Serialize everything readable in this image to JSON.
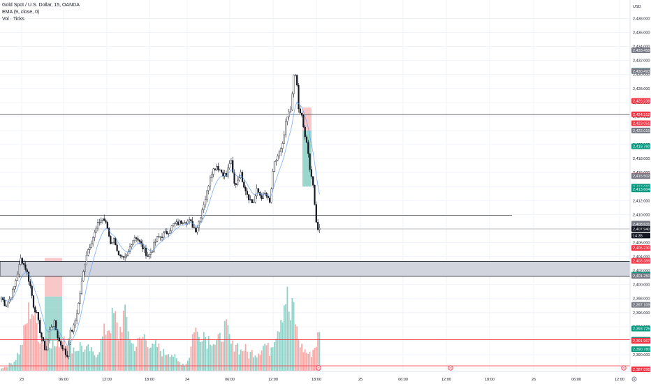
{
  "legend": {
    "symbol": "Gold Spot / U.S. Dollar, 15, OANDA",
    "ema": "EMA (9, close, 0)",
    "vol": "Vol · Ticks"
  },
  "currency": "USD",
  "chart_data": {
    "type": "candlestick",
    "title": "",
    "y_ticks": [
      "2,438.000",
      "2,436.000",
      "2,434.000",
      "2,432.000",
      "2,430.000",
      "2,428.000",
      "2,426.000",
      "2,424.000",
      "2,422.000",
      "2,420.000",
      "2,418.000",
      "2,416.000",
      "2,414.000",
      "2,412.000",
      "2,410.000",
      "2,408.000",
      "2,406.000",
      "2,404.000",
      "2,402.000",
      "2,400.000",
      "2,398.000",
      "2,396.000",
      "2,394.000",
      "2,392.000",
      "2,390.000",
      "2,388.000"
    ],
    "ylim": [
      2387.0,
      2439.5
    ],
    "x_ticks": [
      "23",
      "06:00",
      "12:00",
      "18:00",
      "24",
      "06:00",
      "12:00",
      "18:00",
      "25",
      "06:00",
      "12:00",
      "18:00",
      "26",
      "06:00",
      "12:00"
    ],
    "price_tags": [
      {
        "label": "2,433.458",
        "value": 2433.458,
        "color": "#787b86"
      },
      {
        "label": "2,430.530",
        "value": 2430.53,
        "color": "#089981"
      },
      {
        "label": "2,430.493",
        "value": 2430.493,
        "color": "#787b86"
      },
      {
        "label": "2,426.238",
        "value": 2426.238,
        "color": "#f23645"
      },
      {
        "label": "2,424.312",
        "value": 2424.312,
        "color": "#f23645"
      },
      {
        "label": "2,423.051",
        "value": 2423.051,
        "color": "#f23645"
      },
      {
        "label": "2,422.015",
        "value": 2422.015,
        "color": "#787b86"
      },
      {
        "label": "2,419.760",
        "value": 2419.76,
        "color": "#089981"
      },
      {
        "label": "2,415.547",
        "value": 2415.547,
        "color": "#f23645"
      },
      {
        "label": "2,415.504",
        "value": 2415.504,
        "color": "#f23645"
      },
      {
        "label": "2,415.502",
        "value": 2415.502,
        "color": "#787b86"
      },
      {
        "label": "2,413.982",
        "value": 2413.982,
        "color": "#089981"
      },
      {
        "label": "2,413.604",
        "value": 2413.604,
        "color": "#089981"
      },
      {
        "label": "2,408.718",
        "value": 2408.718,
        "color": "#787b86"
      },
      {
        "label": "2,408.631",
        "value": 2408.631,
        "color": "#787b86"
      },
      {
        "label": "2,407.940",
        "value": 2407.94,
        "color": "#131722"
      },
      {
        "label": "14:35",
        "value": 2407.0,
        "color": "#131722"
      },
      {
        "label": "2,405.230",
        "value": 2405.23,
        "color": "#f23645"
      },
      {
        "label": "2,403.389",
        "value": 2403.389,
        "color": "#f23645"
      },
      {
        "label": "2,401.409",
        "value": 2401.409,
        "color": "#089981"
      },
      {
        "label": "2,401.292",
        "value": 2401.292,
        "color": "#089981"
      },
      {
        "label": "2,401.250",
        "value": 2401.25,
        "color": "#787b86"
      },
      {
        "label": "2,397.109",
        "value": 2397.109,
        "color": "#787b86"
      },
      {
        "label": "2,393.725",
        "value": 2393.725,
        "color": "#089981"
      },
      {
        "label": "2,392.127",
        "value": 2392.127,
        "color": "#089981"
      },
      {
        "label": "2,392.011",
        "value": 2392.011,
        "color": "#089981"
      },
      {
        "label": "2,392.004",
        "value": 2392.004,
        "color": "#f23645"
      },
      {
        "label": "2,391.967",
        "value": 2391.967,
        "color": "#f23645"
      },
      {
        "label": "2,390.780",
        "value": 2390.78,
        "color": "#089981"
      },
      {
        "label": "2,387.898",
        "value": 2387.898,
        "color": "#f23645"
      }
    ],
    "horizontal_lines": [
      {
        "value": 2424.312,
        "color": "#555555"
      },
      {
        "value": 2409.9,
        "color": "#555555"
      },
      {
        "value": 2407.94,
        "color": "#b0b0b0"
      },
      {
        "value": 2392.13,
        "color": "#f23645"
      },
      {
        "value": 2388.4,
        "color": "#f23645"
      }
    ],
    "zone": {
      "low": 2401.2,
      "high": 2403.3
    },
    "series_pivots": [
      [
        0,
        2398.6
      ],
      [
        8,
        2397.0
      ],
      [
        14,
        2398.0
      ],
      [
        20,
        2399.5
      ],
      [
        30,
        2403.8
      ],
      [
        38,
        2402.0
      ],
      [
        44,
        2399.5
      ],
      [
        48,
        2397.0
      ],
      [
        52,
        2396.0
      ],
      [
        57,
        2393.5
      ],
      [
        62,
        2391.5
      ],
      [
        66,
        2390.5
      ],
      [
        72,
        2394.0
      ],
      [
        78,
        2394.5
      ],
      [
        84,
        2392.0
      ],
      [
        90,
        2391.0
      ],
      [
        96,
        2389.6
      ],
      [
        100,
        2393.0
      ],
      [
        106,
        2394.0
      ],
      [
        112,
        2397.0
      ],
      [
        118,
        2401.0
      ],
      [
        124,
        2404.5
      ],
      [
        130,
        2406.0
      ],
      [
        136,
        2407.5
      ],
      [
        142,
        2409.0
      ],
      [
        148,
        2409.5
      ],
      [
        154,
        2408.0
      ],
      [
        158,
        2406.0
      ],
      [
        164,
        2406.5
      ],
      [
        170,
        2404.0
      ],
      [
        176,
        2403.5
      ],
      [
        182,
        2404.0
      ],
      [
        188,
        2406.0
      ],
      [
        194,
        2407.0
      ],
      [
        200,
        2406.0
      ],
      [
        206,
        2405.0
      ],
      [
        212,
        2404.0
      ],
      [
        218,
        2405.0
      ],
      [
        224,
        2406.5
      ],
      [
        232,
        2407.0
      ],
      [
        240,
        2407.5
      ],
      [
        248,
        2408.5
      ],
      [
        256,
        2408.8
      ],
      [
        264,
        2409.2
      ],
      [
        272,
        2409.0
      ],
      [
        280,
        2407.8
      ],
      [
        284,
        2408.6
      ],
      [
        290,
        2411.0
      ],
      [
        296,
        2413.0
      ],
      [
        302,
        2416.0
      ],
      [
        310,
        2417.0
      ],
      [
        318,
        2416.0
      ],
      [
        324,
        2415.5
      ],
      [
        330,
        2418.0
      ],
      [
        336,
        2414.0
      ],
      [
        344,
        2416.0
      ],
      [
        350,
        2414.0
      ],
      [
        356,
        2412.5
      ],
      [
        362,
        2411.5
      ],
      [
        368,
        2413.5
      ],
      [
        374,
        2412.5
      ],
      [
        380,
        2413.0
      ],
      [
        386,
        2411.5
      ],
      [
        392,
        2417.0
      ],
      [
        398,
        2418.5
      ],
      [
        404,
        2419.5
      ],
      [
        410,
        2423.5
      ],
      [
        416,
        2425.0
      ],
      [
        420,
        2429.5
      ],
      [
        424,
        2430.0
      ],
      [
        428,
        2424.5
      ],
      [
        432,
        2424.0
      ],
      [
        436,
        2421.5
      ],
      [
        440,
        2419.5
      ],
      [
        444,
        2416.5
      ],
      [
        448,
        2414.5
      ],
      [
        452,
        2409.0
      ],
      [
        456,
        2407.9
      ]
    ],
    "volume_pivots": [
      [
        0,
        0.03
      ],
      [
        10,
        0.06
      ],
      [
        20,
        0.12
      ],
      [
        30,
        0.3
      ],
      [
        36,
        0.55
      ],
      [
        44,
        0.85
      ],
      [
        50,
        0.7
      ],
      [
        56,
        0.45
      ],
      [
        62,
        0.4
      ],
      [
        68,
        0.45
      ],
      [
        74,
        0.38
      ],
      [
        80,
        0.3
      ],
      [
        86,
        0.42
      ],
      [
        92,
        0.48
      ],
      [
        98,
        0.38
      ],
      [
        104,
        0.3
      ],
      [
        110,
        0.28
      ],
      [
        116,
        0.34
      ],
      [
        122,
        0.25
      ],
      [
        128,
        0.28
      ],
      [
        134,
        0.2
      ],
      [
        140,
        0.25
      ],
      [
        146,
        0.4
      ],
      [
        152,
        0.55
      ],
      [
        158,
        0.6
      ],
      [
        164,
        0.72
      ],
      [
        170,
        0.45
      ],
      [
        176,
        0.7
      ],
      [
        182,
        0.65
      ],
      [
        188,
        0.35
      ],
      [
        194,
        0.32
      ],
      [
        200,
        0.38
      ],
      [
        206,
        0.45
      ],
      [
        212,
        0.4
      ],
      [
        218,
        0.28
      ],
      [
        224,
        0.33
      ],
      [
        230,
        0.26
      ],
      [
        236,
        0.22
      ],
      [
        242,
        0.26
      ],
      [
        248,
        0.2
      ],
      [
        254,
        0.12
      ],
      [
        260,
        0.1
      ],
      [
        266,
        0.08
      ],
      [
        272,
        0.22
      ],
      [
        278,
        0.6
      ],
      [
        284,
        0.42
      ],
      [
        290,
        0.55
      ],
      [
        296,
        0.4
      ],
      [
        302,
        0.45
      ],
      [
        308,
        0.35
      ],
      [
        314,
        0.38
      ],
      [
        320,
        0.55
      ],
      [
        326,
        0.5
      ],
      [
        332,
        0.3
      ],
      [
        338,
        0.38
      ],
      [
        344,
        0.25
      ],
      [
        350,
        0.3
      ],
      [
        356,
        0.2
      ],
      [
        362,
        0.25
      ],
      [
        368,
        0.22
      ],
      [
        374,
        0.3
      ],
      [
        380,
        0.35
      ],
      [
        386,
        0.25
      ],
      [
        392,
        0.45
      ],
      [
        398,
        0.58
      ],
      [
        404,
        0.8
      ],
      [
        410,
        1.0
      ],
      [
        416,
        0.65
      ],
      [
        420,
        0.85
      ],
      [
        426,
        0.45
      ],
      [
        432,
        0.3
      ],
      [
        438,
        0.25
      ],
      [
        444,
        0.2
      ],
      [
        450,
        0.3
      ],
      [
        456,
        0.45
      ]
    ],
    "candle_seed": 7
  }
}
